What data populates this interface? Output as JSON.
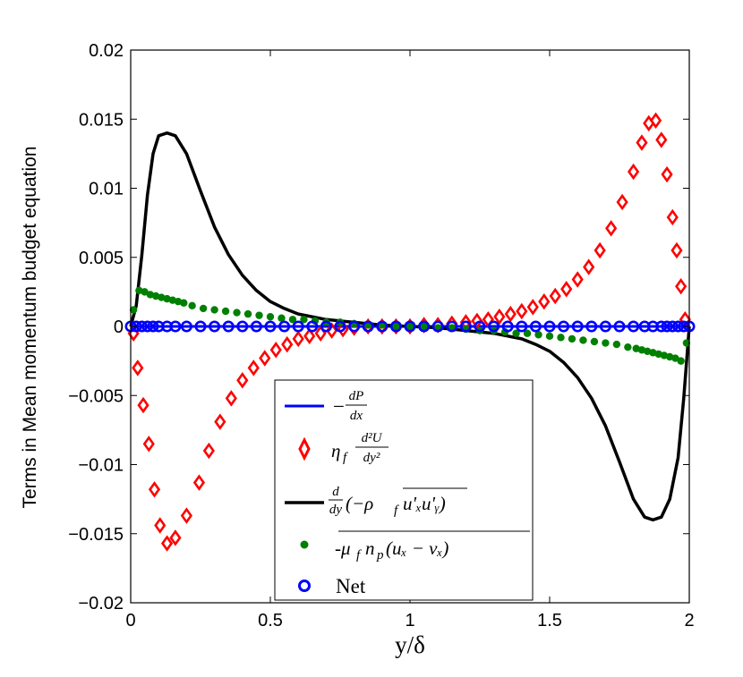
{
  "chart_data": {
    "type": "line",
    "title": "",
    "xlabel": "y/δ",
    "ylabel": "Terms in Mean momentum budget equation",
    "xlim": [
      0,
      2
    ],
    "ylim": [
      -0.02,
      0.02
    ],
    "xticks": [
      "0",
      "0.5",
      "1",
      "1.5",
      "2"
    ],
    "yticks": [
      "0.02",
      "0.015",
      "0.01",
      "0.005",
      "0",
      "−0.005",
      "−0.01",
      "−0.015",
      "−0.02"
    ],
    "legend_position": "bottom-center",
    "series": [
      {
        "name": "−dP/dx",
        "style": "solid-line",
        "color": "#0000ff",
        "x": [
          0,
          2
        ],
        "y": [
          0,
          0
        ]
      },
      {
        "name": "η_f d²U/dy²",
        "style": "diamond-markers",
        "color": "#ff0000",
        "x": [
          0.01,
          0.025,
          0.045,
          0.065,
          0.085,
          0.105,
          0.13,
          0.16,
          0.2,
          0.245,
          0.28,
          0.32,
          0.36,
          0.4,
          0.44,
          0.48,
          0.52,
          0.56,
          0.6,
          0.64,
          0.68,
          0.72,
          0.76,
          0.8,
          0.85,
          0.9,
          0.95,
          1.0,
          1.05,
          1.1,
          1.15,
          1.2,
          1.24,
          1.28,
          1.32,
          1.36,
          1.4,
          1.44,
          1.48,
          1.52,
          1.56,
          1.6,
          1.64,
          1.68,
          1.72,
          1.76,
          1.8,
          1.83,
          1.855,
          1.88,
          1.9,
          1.92,
          1.94,
          1.955,
          1.97,
          1.985
        ],
        "y": [
          -0.0005,
          -0.003,
          -0.0057,
          -0.0085,
          -0.0118,
          -0.0144,
          -0.0157,
          -0.0153,
          -0.0137,
          -0.0113,
          -0.009,
          -0.0069,
          -0.0052,
          -0.0039,
          -0.003,
          -0.0023,
          -0.0017,
          -0.0013,
          -0.0009,
          -0.0007,
          -0.0005,
          -0.0003,
          -0.0002,
          -0.0001,
          0.0,
          0.0,
          0.0,
          0.0,
          0.0001,
          0.0001,
          0.0002,
          0.0003,
          0.0004,
          0.0005,
          0.0007,
          0.0009,
          0.0011,
          0.0014,
          0.0018,
          0.0022,
          0.0027,
          0.0034,
          0.0043,
          0.0055,
          0.0071,
          0.009,
          0.0112,
          0.0133,
          0.0147,
          0.0149,
          0.0135,
          0.011,
          0.0079,
          0.0055,
          0.0029,
          0.0005
        ]
      },
      {
        "name": "d/dy(−ρ_f u'_x u'_y)",
        "style": "solid-line",
        "color": "#000000",
        "x": [
          0,
          0.02,
          0.04,
          0.06,
          0.08,
          0.1,
          0.13,
          0.16,
          0.2,
          0.25,
          0.3,
          0.35,
          0.4,
          0.45,
          0.5,
          0.55,
          0.6,
          0.7,
          0.8,
          0.9,
          1.0,
          1.1,
          1.2,
          1.3,
          1.4,
          1.45,
          1.5,
          1.55,
          1.6,
          1.65,
          1.7,
          1.75,
          1.8,
          1.84,
          1.87,
          1.9,
          1.93,
          1.96,
          1.98,
          2.0
        ],
        "y": [
          0,
          0.0015,
          0.0052,
          0.0095,
          0.0125,
          0.0138,
          0.014,
          0.0138,
          0.0125,
          0.0098,
          0.0072,
          0.0052,
          0.0037,
          0.0026,
          0.0018,
          0.0013,
          0.0009,
          0.0005,
          0.0003,
          0.0001,
          0.0,
          -0.0001,
          -0.0003,
          -0.0005,
          -0.0009,
          -0.0013,
          -0.0018,
          -0.0026,
          -0.0037,
          -0.0052,
          -0.0072,
          -0.0098,
          -0.0125,
          -0.0138,
          -0.014,
          -0.0138,
          -0.0125,
          -0.0095,
          -0.0052,
          0.0
        ]
      },
      {
        "name": "-μ_f n_p(u_x − v_x)",
        "style": "dot-markers",
        "color": "#008000",
        "x": [
          0.01,
          0.03,
          0.05,
          0.07,
          0.09,
          0.11,
          0.13,
          0.15,
          0.17,
          0.19,
          0.22,
          0.26,
          0.3,
          0.34,
          0.38,
          0.42,
          0.46,
          0.5,
          0.54,
          0.58,
          0.62,
          0.66,
          0.7,
          0.75,
          0.8,
          0.85,
          0.9,
          0.95,
          1.0,
          1.05,
          1.1,
          1.15,
          1.2,
          1.25,
          1.3,
          1.34,
          1.38,
          1.42,
          1.46,
          1.5,
          1.54,
          1.58,
          1.62,
          1.66,
          1.7,
          1.74,
          1.78,
          1.81,
          1.83,
          1.85,
          1.87,
          1.89,
          1.91,
          1.93,
          1.95,
          1.97,
          1.99
        ],
        "y": [
          0.0012,
          0.0026,
          0.0025,
          0.0023,
          0.0022,
          0.0021,
          0.002,
          0.0019,
          0.0018,
          0.0017,
          0.0015,
          0.0013,
          0.0012,
          0.0011,
          0.001,
          0.0009,
          0.0008,
          0.0007,
          0.0006,
          0.0005,
          0.0005,
          0.0004,
          0.0003,
          0.0003,
          0.0002,
          0.0001,
          0.0001,
          0.0,
          0.0,
          0.0,
          -0.0001,
          -0.0001,
          -0.0002,
          -0.0003,
          -0.0003,
          -0.0004,
          -0.0005,
          -0.0005,
          -0.0006,
          -0.0007,
          -0.0008,
          -0.0009,
          -0.001,
          -0.0011,
          -0.0012,
          -0.0013,
          -0.0015,
          -0.0016,
          -0.0017,
          -0.0018,
          -0.0019,
          -0.002,
          -0.0021,
          -0.0022,
          -0.0023,
          -0.0025,
          -0.0012
        ]
      },
      {
        "name": "Net",
        "style": "circle-markers",
        "color": "#0000ff",
        "x": [
          0.0,
          0.02,
          0.04,
          0.06,
          0.08,
          0.1,
          0.13,
          0.16,
          0.2,
          0.25,
          0.3,
          0.35,
          0.4,
          0.45,
          0.5,
          0.55,
          0.6,
          0.65,
          0.7,
          0.75,
          0.8,
          0.85,
          0.9,
          0.95,
          1.0,
          1.05,
          1.1,
          1.15,
          1.2,
          1.25,
          1.3,
          1.35,
          1.4,
          1.45,
          1.5,
          1.55,
          1.6,
          1.65,
          1.7,
          1.75,
          1.8,
          1.84,
          1.87,
          1.9,
          1.92,
          1.94,
          1.96,
          1.98,
          2.0
        ],
        "y": [
          0,
          0,
          0,
          0,
          0,
          0,
          0,
          0,
          0,
          0,
          0,
          0,
          0,
          0,
          0,
          0,
          0,
          0,
          0,
          0,
          0,
          0,
          0,
          0,
          0,
          0,
          0,
          0,
          0,
          0,
          0,
          0,
          0,
          0,
          0,
          0,
          0,
          0,
          0,
          0,
          0,
          0,
          0,
          0,
          0,
          0,
          0,
          0,
          0
        ]
      }
    ],
    "legend": {
      "entry1_prefix": "−",
      "entry1_num": "dP",
      "entry1_den": "dx",
      "entry2_eta": "η",
      "entry2_sub": "f",
      "entry2_num": "d²U",
      "entry2_den": "dy²",
      "entry3_num": "d",
      "entry3_den": "dy",
      "entry3_body": "(−ρ",
      "entry3_sub": "f",
      "entry3_rest": "u'ₓu'ᵧ)",
      "entry4_text": "-μ",
      "entry4_sub1": "f",
      "entry4_mid": "n",
      "entry4_sub2": "p",
      "entry4_rest": "(uₓ − vₓ)",
      "entry5_text": "Net"
    }
  }
}
